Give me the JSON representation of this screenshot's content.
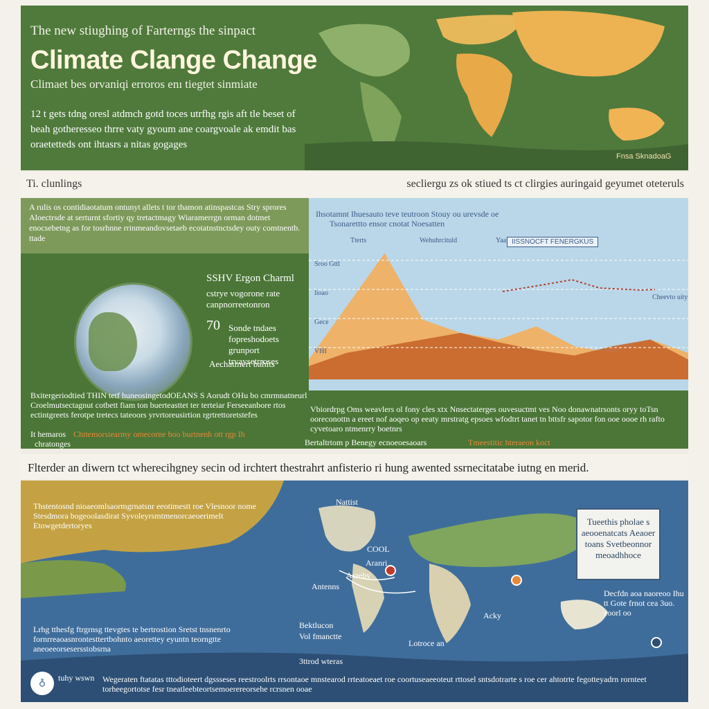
{
  "header": {
    "kicker": "The new stiughing of Farterngs the sinpact",
    "title": "Climate Clange Change",
    "subtitle": "Climaet bes orvaniqi erroros enı tiegtet sinmiate",
    "intro": "12 t gets tdng oresl atdmch gotd toces utrfhg rgis aft tle beset of beah gotheresseo thrre vaty gyoum ane coargvoale ak emdit bas oraetetteds ont ihtasrs a nitas gogages",
    "credit": "Fnsa SknadoaG"
  },
  "section1": {
    "left_label": "Ti. clunlings",
    "right_label": "secliergu zs ok stiued ts ct clirgies auringaid geyumet oteteruls"
  },
  "mid": {
    "textbox": "A rulis os contidiaotatum ontunyt allets t tor thamon atinspastcas Stry sprores Aloectrsde at serturnt sfortiy qy tretactmagy Wiaramerrgn orman dotmet enocsebetng as for tosrhnne rrinmeandovsetaeb ecotatnstnctsdey outy comtnentb. ttade",
    "stat1_title": "SSHV Ergon Charml",
    "stat1_text": "cstrye vogorone rate canpnorreetonron",
    "stat2_number": "70",
    "stat2_text": "Sonde tndaes fopreshodoets grunport trvaysetrroses",
    "stat3_text": "Aechatmert bahits",
    "caption_left": "Bxitergeriodtied THIN tetf huneosingetodOEANS S Aorudt OHu bo cmrmnatneurl Croelmutsectagnut cotbett fiam ton buerteasttet ter terteiar Ferseeanbore rtos ectintgreets ferotpe tretecs tateoors yrvrtoreusirtion rgrtrettoretstefes",
    "caption_left_tail": "It hemaros",
    "caption_orange": "Chitemorsiearmy omecorne boo burtnenh ott rgp Ih",
    "caption_left_end": "chratonges",
    "caption_right": "Vbiordrpg Oms weavlers ol fony cles xtx Nnsectaterges ouvesuctmt ves Noo donawnatrsonts oryy toTsn ooreconottn a ereet nof aoqeo op eeaty mrstratg epsoes wfodtrt tanet tn bttsfr sapotor fon ooe oooe rh rafto cyvetoaro ntmenrry boetnrs",
    "caption_right_left": "Bertaltrtom p Benegy ecnoeoesaoars",
    "caption_right_orange": "Tmeestitic hteraeon koct"
  },
  "chart_data": {
    "type": "area",
    "title": "Ihsotamnt Ihuesauto teve teutroon Stouy ou urevsde oe",
    "subtitle": "Tsonarettto ensor cnotat Noesatten",
    "tag": "IISSNOCFT FENERGKUS",
    "annotations": [
      "Tterts",
      "Wehuhrcituld",
      "Yaan"
    ],
    "tick_labels": [
      "Sroo Gttl",
      "lioao",
      "Gece",
      "VHI"
    ],
    "right_label": "Cheevto uity",
    "series": [
      {
        "values": [
          0.15,
          0.55,
          0.95,
          0.45,
          0.35,
          0.3,
          0.4,
          0.25,
          0.2,
          0.3,
          0.2
        ]
      },
      {
        "values": [
          0.1,
          0.2,
          0.25,
          0.3,
          0.35,
          0.28,
          0.22,
          0.18,
          0.25,
          0.3,
          0.15
        ]
      }
    ]
  },
  "section2": {
    "label": "Flterder an diwern tct wherecihgney secin od irchtert thestrahrt anfisterio ri hung awented ssrnecitatabe iutng en merid."
  },
  "bottom": {
    "left_top": "Thstentosnd nioaeomlsaormgrnatsnr eeotimestt roe Vlesnoor nome Stesdmora bogeoolasdirat Syvoleyrsmtmenorcaeoerimelt Etowgetdertoryes",
    "left_bottom": "Lrhg tthesfg ftrgrnsg ttevgtes te bertrostion Sretst tnsnenrto fornrreaoasnrontesttertbohnto aeorettey eyuntn teorngtte aneoeeorsesersstobsrna",
    "labels": [
      "Nattist",
      "COOL",
      "Aranri",
      "Acreby",
      "Antenns",
      "Bektlucon",
      "Vol fmanctte",
      "Acky",
      "Lotroce an",
      "3ttrod wteras"
    ],
    "legend": "Tueethis pholae s aeooenatcats Aeaoer toans Svetbeonnor meoadhhoce",
    "right_text": "Decfdn aoa naoreoo Ihu tt Gote frnot cea 3uo. eoorl oo",
    "logo_label": "tuhy wswn",
    "footer": "Wegeraten ftatatas tttodioteert dgssseses reestroolrts rrsontaoe mnstearod rrteatoeaet roe coortuseaeeoteut rttosel sntsdotrarte s roe cer ahtotrte fegotteyadrn rornteet torheegortotse fesr tneatleebteortsemoerereorsehe rcrsnen ooae"
  },
  "colors": {
    "header_green": "#4f7a3c",
    "light_green": "#7d9a5a",
    "chart_sky": "#b9d7e8",
    "orange": "#e8893a",
    "ocean_blue": "#3f6d9b"
  }
}
